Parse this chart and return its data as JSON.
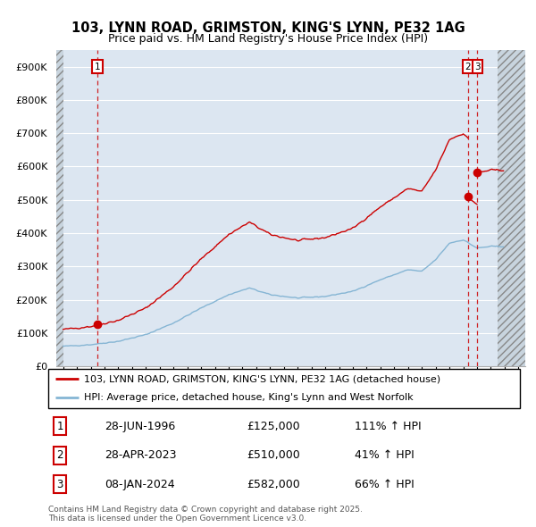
{
  "title_line1": "103, LYNN ROAD, GRIMSTON, KING'S LYNN, PE32 1AG",
  "title_line2": "Price paid vs. HM Land Registry's House Price Index (HPI)",
  "ylim": [
    0,
    950000
  ],
  "xlim_start": 1993.5,
  "xlim_end": 2027.5,
  "hatch_left_end": 1994.0,
  "hatch_right_start": 2025.5,
  "yticks": [
    0,
    100000,
    200000,
    300000,
    400000,
    500000,
    600000,
    700000,
    800000,
    900000
  ],
  "ytick_labels": [
    "£0",
    "£100K",
    "£200K",
    "£300K",
    "£400K",
    "£500K",
    "£600K",
    "£700K",
    "£800K",
    "£900K"
  ],
  "background_color": "#ffffff",
  "plot_bg_color": "#dce6f1",
  "grid_color": "#ffffff",
  "red_line_color": "#cc0000",
  "blue_line_color": "#85b5d4",
  "dashed_line_color": "#cc0000",
  "sale_points": [
    {
      "year": 1996.49,
      "price": 125000,
      "label": "1"
    },
    {
      "year": 2023.33,
      "price": 510000,
      "label": "2"
    },
    {
      "year": 2024.03,
      "price": 582000,
      "label": "3"
    }
  ],
  "legend_entries": [
    {
      "color": "#cc0000",
      "label": "103, LYNN ROAD, GRIMSTON, KING'S LYNN, PE32 1AG (detached house)"
    },
    {
      "color": "#85b5d4",
      "label": "HPI: Average price, detached house, King's Lynn and West Norfolk"
    }
  ],
  "table_rows": [
    {
      "num": "1",
      "date": "28-JUN-1996",
      "price": "£125,000",
      "hpi": "111% ↑ HPI"
    },
    {
      "num": "2",
      "date": "28-APR-2023",
      "price": "£510,000",
      "hpi": "41% ↑ HPI"
    },
    {
      "num": "3",
      "date": "08-JAN-2024",
      "price": "£582,000",
      "hpi": "66% ↑ HPI"
    }
  ],
  "footnote": "Contains HM Land Registry data © Crown copyright and database right 2025.\nThis data is licensed under the Open Government Licence v3.0.",
  "title_fontsize": 10.5,
  "subtitle_fontsize": 9,
  "tick_fontsize": 8,
  "legend_fontsize": 8,
  "table_fontsize": 9
}
